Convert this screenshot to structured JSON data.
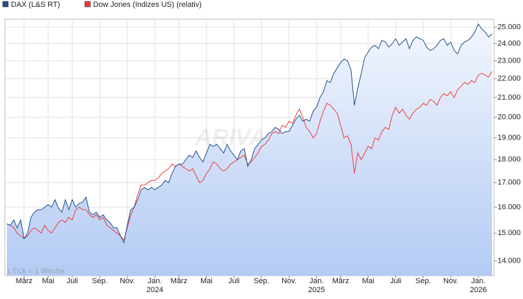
{
  "chart_data": {
    "type": "line",
    "yscale": "log",
    "grid": true,
    "legend": "top-left",
    "watermark": "ARIVA",
    "annotation": "1 Tick = 1 Woche",
    "categories": [
      null,
      null,
      null,
      null,
      null,
      "März",
      null,
      null,
      null,
      null,
      null,
      null,
      "Mai",
      null,
      null,
      null,
      null,
      null,
      null,
      "Juli",
      null,
      null,
      null,
      null,
      null,
      null,
      null,
      "Sep.",
      null,
      null,
      null,
      null,
      null,
      null,
      null,
      "Nov.",
      null,
      null,
      null,
      null,
      null,
      null,
      null,
      "Jan. 2024",
      null,
      null,
      null,
      null,
      null,
      null,
      "März",
      null,
      null,
      null,
      null,
      null,
      null,
      null,
      "Mai",
      null,
      null,
      null,
      null,
      null,
      null,
      null,
      "Juli",
      null,
      null,
      null,
      null,
      null,
      null,
      null,
      "Sep.",
      null,
      null,
      null,
      null,
      null,
      null,
      null,
      "Nov.",
      null,
      null,
      null,
      null,
      null,
      null,
      null,
      "Jan. 2025",
      null,
      null,
      null,
      null,
      null,
      null,
      "März",
      null,
      null,
      null,
      null,
      null,
      null,
      null,
      "Mai",
      null,
      null,
      null,
      null,
      null,
      null,
      null,
      "Juli",
      null,
      null,
      null,
      null,
      null,
      null,
      null,
      "Sep.",
      null,
      null,
      null,
      null,
      null,
      null,
      null,
      "Nov.",
      null,
      null,
      null,
      null,
      null,
      null,
      null,
      "Jan. 2026",
      null,
      null,
      null,
      null
    ],
    "series": [
      {
        "name": "DAX (L&S RT)",
        "color": "#1f4e8c",
        "area": true,
        "values": [
          15350,
          15300,
          15500,
          15200,
          15500,
          14800,
          15000,
          15600,
          15800,
          15900,
          15900,
          16000,
          16100,
          16000,
          16300,
          15950,
          15800,
          16300,
          15900,
          16300,
          16000,
          16150,
          16200,
          16400,
          15800,
          15700,
          15800,
          15600,
          15700,
          15500,
          15400,
          15200,
          15200,
          14900,
          14650,
          15300,
          15900,
          16000,
          16300,
          16700,
          16800,
          16700,
          16800,
          16700,
          16800,
          16900,
          17100,
          17000,
          17400,
          17700,
          17800,
          17800,
          18000,
          18200,
          18100,
          18400,
          18100,
          17900,
          18300,
          18700,
          18600,
          18700,
          18500,
          18300,
          18700,
          18400,
          18200,
          18000,
          18400,
          18500,
          17700,
          18000,
          18500,
          18700,
          18900,
          19000,
          19200,
          19300,
          19500,
          19400,
          19200,
          19300,
          19300,
          19600,
          19900,
          20100,
          19800,
          19900,
          19800,
          20300,
          20500,
          21000,
          21300,
          21900,
          21800,
          22300,
          22600,
          22900,
          23100,
          23000,
          22500,
          20600,
          21500,
          22300,
          23200,
          23500,
          23800,
          23900,
          23700,
          24200,
          24100,
          23800,
          24000,
          24300,
          23900,
          24100,
          24300,
          23700,
          24200,
          24400,
          24300,
          24200,
          23800,
          23600,
          23700,
          23900,
          24200,
          24300,
          23900,
          24100,
          23600,
          23400,
          23900,
          24100,
          24200,
          24400,
          24700,
          25200,
          24900,
          24700,
          24400,
          24600
        ]
      },
      {
        "name": "Dow Jones (Indizes US) (relativ)",
        "color": "#ee3b3b",
        "values": [
          15350,
          15300,
          15200,
          15000,
          14900,
          14800,
          14900,
          15100,
          15200,
          15100,
          15000,
          15300,
          15100,
          15000,
          15200,
          15400,
          15500,
          15400,
          15600,
          15500,
          15900,
          16000,
          15900,
          15900,
          15700,
          15600,
          15700,
          15500,
          15600,
          15300,
          15200,
          15100,
          15000,
          14900,
          14750,
          15200,
          15700,
          16000,
          16500,
          16900,
          16900,
          17000,
          17100,
          17100,
          17200,
          17400,
          17500,
          17600,
          17800,
          17700,
          17800,
          17700,
          17600,
          17500,
          17600,
          17300,
          17000,
          17100,
          17400,
          17600,
          17900,
          17800,
          17600,
          17500,
          17600,
          17800,
          17900,
          18000,
          18100,
          18200,
          17800,
          17900,
          18100,
          18300,
          18600,
          18700,
          18900,
          19200,
          19300,
          19200,
          19600,
          19500,
          19800,
          19700,
          20100,
          20400,
          20000,
          19500,
          19300,
          19000,
          19200,
          19800,
          20300,
          20700,
          20600,
          20400,
          20200,
          19600,
          19000,
          19100,
          18700,
          17400,
          18300,
          18000,
          18300,
          18600,
          18500,
          19000,
          18900,
          19300,
          19500,
          19400,
          20100,
          20500,
          20200,
          20400,
          20100,
          19900,
          20200,
          20400,
          20500,
          20700,
          20600,
          20900,
          20800,
          20600,
          21000,
          21200,
          21100,
          21300,
          21000,
          21400,
          21600,
          21800,
          21700,
          21900,
          21800,
          22200,
          22300,
          22200,
          22100,
          22400
        ]
      }
    ],
    "ylim": [
      13500,
      25500
    ],
    "yticks": [
      {
        "value": 14000,
        "label": "14.000"
      },
      {
        "value": 15000,
        "label": "15.000"
      },
      {
        "value": 16000,
        "label": "16.000"
      },
      {
        "value": 17000,
        "label": "17.000"
      },
      {
        "value": 18000,
        "label": "18.000"
      },
      {
        "value": 19000,
        "label": "19.000"
      },
      {
        "value": 20000,
        "label": "20.000"
      },
      {
        "value": 21000,
        "label": "21.000"
      },
      {
        "value": 22000,
        "label": "22.000"
      },
      {
        "value": 23000,
        "label": "23.000"
      },
      {
        "value": 24000,
        "label": "24.000"
      },
      {
        "value": 25000,
        "label": "25.000"
      }
    ]
  }
}
